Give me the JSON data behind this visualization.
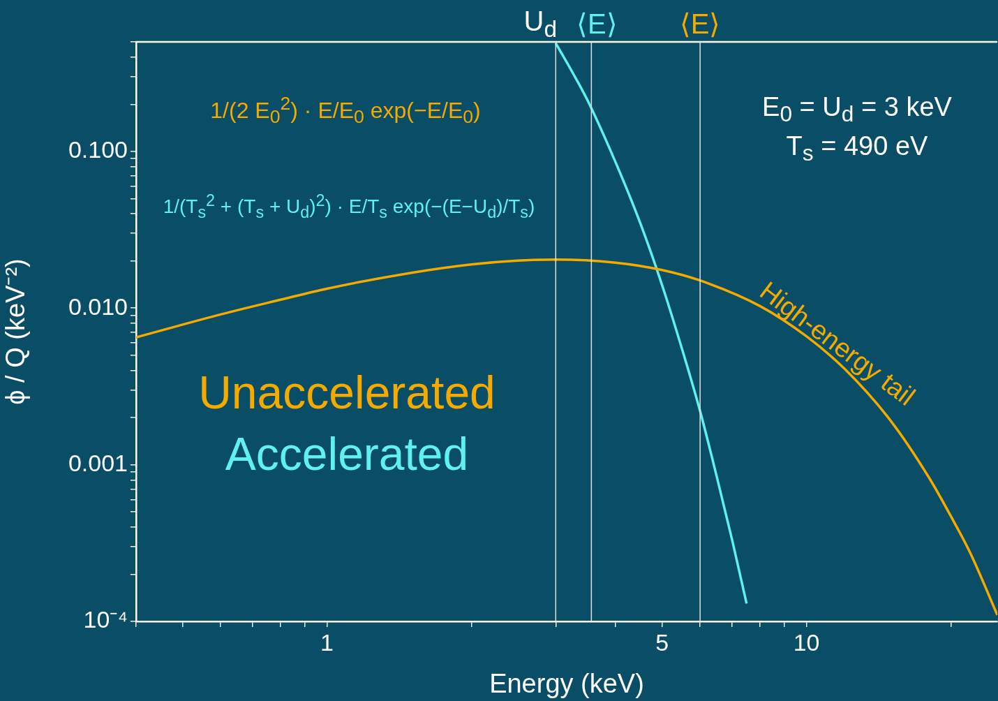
{
  "chart_data": {
    "type": "line",
    "xlabel": "Energy (keV)",
    "ylabel": "ϕ / Q (keV⁻²)",
    "log": "xy",
    "xlim": [
      0.4,
      25
    ],
    "ylim": [
      0.0001,
      0.5
    ],
    "xticks": [
      {
        "value": 0.4,
        "label": null
      },
      {
        "value": 0.5,
        "label": null
      },
      {
        "value": 0.6,
        "label": null
      },
      {
        "value": 0.7,
        "label": null
      },
      {
        "value": 0.8,
        "label": null
      },
      {
        "value": 0.9,
        "label": null
      },
      1,
      {
        "value": 2,
        "label": null
      },
      {
        "value": 3,
        "label": null
      },
      {
        "value": 4,
        "label": null
      },
      5,
      {
        "value": 6,
        "label": null
      },
      {
        "value": 7,
        "label": null
      },
      {
        "value": 8,
        "label": null
      },
      {
        "value": 9,
        "label": null
      },
      10,
      {
        "value": 20,
        "label": null
      }
    ],
    "yticks": [
      {
        "value": 0.0001,
        "label": "10⁻⁴"
      },
      {
        "value": 0.0002,
        "label": null
      },
      {
        "value": 0.0003,
        "label": null
      },
      {
        "value": 0.0004,
        "label": null
      },
      {
        "value": 0.0005,
        "label": null
      },
      {
        "value": 0.0006,
        "label": null
      },
      {
        "value": 0.0007,
        "label": null
      },
      {
        "value": 0.0008,
        "label": null
      },
      {
        "value": 0.0009,
        "label": null
      },
      {
        "value": 0.001,
        "label": "0.001"
      },
      {
        "value": 0.002,
        "label": null
      },
      {
        "value": 0.003,
        "label": null
      },
      {
        "value": 0.004,
        "label": null
      },
      {
        "value": 0.005,
        "label": null
      },
      {
        "value": 0.006,
        "label": null
      },
      {
        "value": 0.007,
        "label": null
      },
      {
        "value": 0.008,
        "label": null
      },
      {
        "value": 0.009,
        "label": null
      },
      {
        "value": 0.01,
        "label": "0.010"
      },
      {
        "value": 0.02,
        "label": null
      },
      {
        "value": 0.03,
        "label": null
      },
      {
        "value": 0.04,
        "label": null
      },
      {
        "value": 0.05,
        "label": null
      },
      {
        "value": 0.06,
        "label": null
      },
      {
        "value": 0.07,
        "label": null
      },
      {
        "value": 0.08,
        "label": null
      },
      {
        "value": 0.09,
        "label": null
      },
      {
        "value": 0.1,
        "label": "0.100"
      },
      {
        "value": 0.2,
        "label": null
      },
      {
        "value": 0.3,
        "label": null
      },
      {
        "value": 0.4,
        "label": null
      },
      {
        "value": 0.5,
        "label": null
      }
    ],
    "grid": false,
    "legend": "left",
    "marker": "none",
    "line_style": "solid",
    "series": [
      {
        "name": "Unaccelerated",
        "color": "#f5aa00",
        "x": [
          0.4,
          0.6,
          0.8,
          1,
          1.5,
          2,
          2.5,
          3,
          4,
          5,
          6,
          8,
          10,
          12,
          15,
          18,
          20,
          22,
          25
        ],
        "values": [
          0.0065,
          0.0091,
          0.0113,
          0.0133,
          0.0168,
          0.019,
          0.0201,
          0.0204,
          0.0195,
          0.0175,
          0.015,
          0.0103,
          0.0066,
          0.0041,
          0.0019,
          0.00083,
          0.00047,
          0.00027,
          0.00011
        ]
      },
      {
        "name": "Accelerated",
        "color": "#5ff0f0",
        "x": [
          3,
          3.25,
          3.5,
          4,
          4.5,
          5,
          5.5,
          6,
          6.5,
          7,
          7.5
        ],
        "values": [
          0.49,
          0.32,
          0.21,
          0.085,
          0.035,
          0.014,
          0.0055,
          0.0022,
          0.00084,
          0.00033,
          0.00013
        ]
      }
    ],
    "ref_lines": [
      {
        "axis": "x",
        "value": 3,
        "label": "U$_{d}$",
        "color": "#e0e0e0"
      },
      {
        "axis": "x",
        "value": 3.56,
        "label": "⟨E⟩",
        "color": "#e0e0e0"
      },
      {
        "axis": "x",
        "value": 6,
        "label": "⟨E⟩",
        "color": "#e0e0e0"
      }
    ],
    "annotations": [
      "1/(2 E$_{0}$$^{2}$) · E/E$_{0}$ exp(−E/E$_{0}$)",
      "1/(T$_{s}$$^{2}$ + (T$_{s}$ + U$_{d}$)$^{2}$) · E/T$_{s}$ exp(−(E−U$_{d}$)/T$_{s}$)",
      "E$_{0}$ = U$_{d}$ = 3 keV",
      "T$_{s}$ = 490 eV",
      "High-energy tail"
    ]
  }
}
